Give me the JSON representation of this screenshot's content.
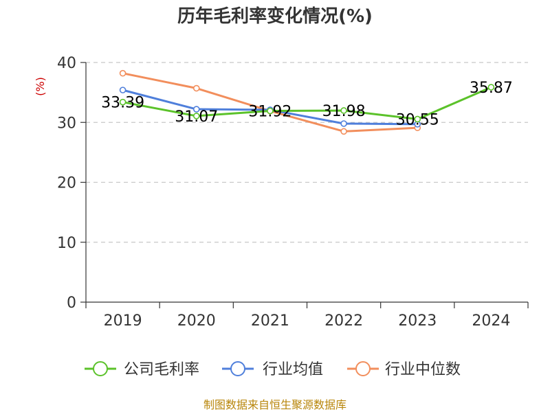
{
  "chart_data": {
    "type": "line",
    "title": "历年毛利率变化情况(%)",
    "ylabel": "(%)",
    "xlabel": "",
    "ylim": [
      0,
      40
    ],
    "yticks": [
      0,
      10,
      20,
      30,
      40
    ],
    "categories": [
      "2019",
      "2020",
      "2021",
      "2022",
      "2023",
      "2024"
    ],
    "grid": true,
    "legend_position": "bottom",
    "series": [
      {
        "name": "公司毛利率",
        "color": "#5bc22a",
        "values": [
          33.39,
          31.07,
          31.92,
          31.98,
          30.55,
          35.87
        ],
        "labels": [
          "33.39",
          "31.07",
          "31.92",
          "31.98",
          "30.55",
          "35.87"
        ]
      },
      {
        "name": "行业均值",
        "color": "#4f7fdb",
        "values": [
          35.4,
          32.2,
          32.1,
          29.8,
          29.7,
          null
        ]
      },
      {
        "name": "行业中位数",
        "color": "#f28e5c",
        "values": [
          38.2,
          35.7,
          31.9,
          28.5,
          29.1,
          null
        ]
      }
    ]
  },
  "footer": {
    "source": "制图数据来自恒生聚源数据库"
  }
}
